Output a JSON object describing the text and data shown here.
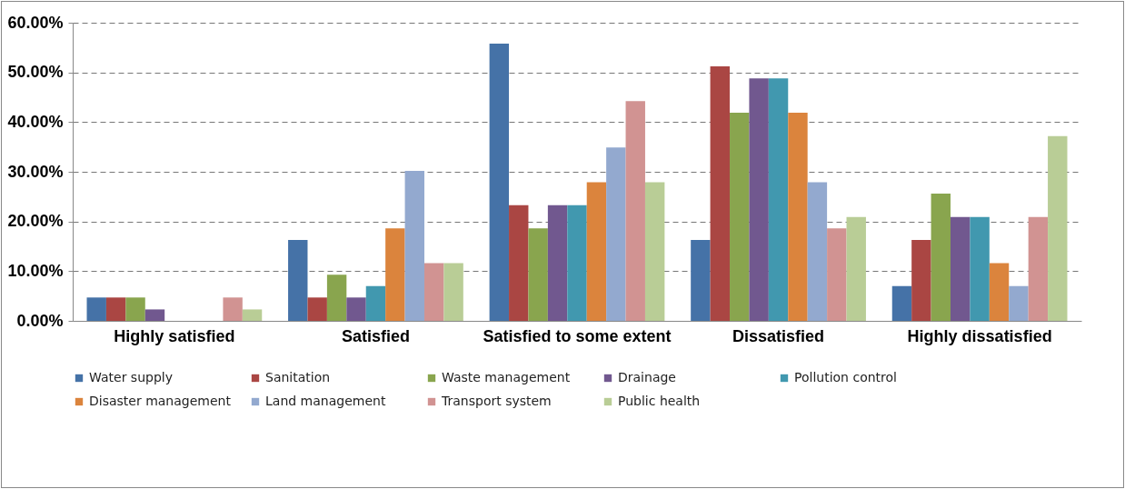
{
  "chart_data": {
    "type": "bar",
    "categories": [
      "Highly satisfied",
      "Satisfied",
      "Satisfied to some extent",
      "Dissatisfied",
      "Highly dissatisfied"
    ],
    "series": [
      {
        "name": "Water supply",
        "color": "#4572a7",
        "values": [
          4.7,
          16.3,
          55.8,
          16.3,
          7.0
        ]
      },
      {
        "name": "Sanitation",
        "color": "#aa4643",
        "values": [
          4.7,
          4.7,
          23.3,
          51.2,
          16.3
        ]
      },
      {
        "name": "Waste management",
        "color": "#89a54e",
        "values": [
          4.7,
          9.3,
          18.6,
          41.9,
          25.6
        ]
      },
      {
        "name": "Drainage",
        "color": "#71588f",
        "values": [
          2.3,
          4.7,
          23.3,
          48.8,
          20.9
        ]
      },
      {
        "name": "Pollution control",
        "color": "#4198af",
        "values": [
          0,
          7.0,
          23.3,
          48.8,
          20.9
        ]
      },
      {
        "name": "Disaster management",
        "color": "#db843d",
        "values": [
          0,
          18.6,
          27.9,
          41.9,
          11.6
        ]
      },
      {
        "name": "Land management",
        "color": "#93a9cf",
        "values": [
          0,
          30.2,
          34.9,
          27.9,
          7.0
        ]
      },
      {
        "name": "Transport system",
        "color": "#d19392",
        "values": [
          4.7,
          11.6,
          44.2,
          18.6,
          20.9
        ]
      },
      {
        "name": "Public health",
        "color": "#b9cd96",
        "values": [
          2.3,
          11.6,
          27.9,
          20.9,
          37.2
        ]
      }
    ],
    "ylim": [
      0,
      60
    ],
    "yticks": [
      {
        "value": 0,
        "label": "0.00%"
      },
      {
        "value": 10,
        "label": "10.00%"
      },
      {
        "value": 20,
        "label": "20.00%"
      },
      {
        "value": 30,
        "label": "30.00%"
      },
      {
        "value": 40,
        "label": "40.00%"
      },
      {
        "value": 50,
        "label": "50.00%"
      },
      {
        "value": 60,
        "label": "60.00%"
      }
    ],
    "grid": "y",
    "legend": "bottom"
  }
}
